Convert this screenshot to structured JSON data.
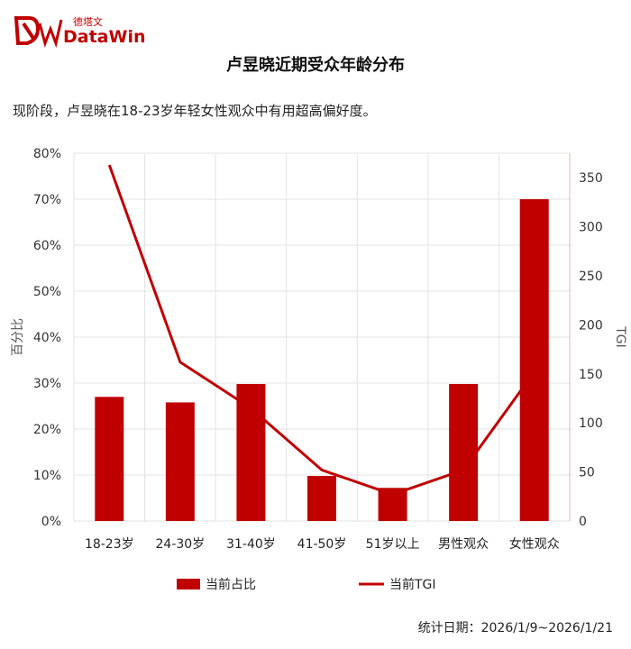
{
  "brand": {
    "cn": "德塔文",
    "en": "DataWin",
    "accent": "#c00000"
  },
  "title": "卢昱晓近期受众年龄分布",
  "subtitle": "现阶段，卢昱晓在18-23岁年轻女性观众中有用超高偏好度。",
  "footer": "统计日期：2026/1/9~2026/1/21",
  "chart_data": {
    "type": "bar",
    "categories": [
      "18-23岁",
      "24-30岁",
      "31-40岁",
      "41-50岁",
      "51岁以上",
      "男性观众",
      "女性观众"
    ],
    "series": [
      {
        "name": "当前占比",
        "type": "bar",
        "axis": "left",
        "color": "#c00000",
        "values": [
          27.0,
          25.8,
          29.8,
          9.8,
          7.2,
          29.8,
          70.0
        ]
      },
      {
        "name": "当前TGI",
        "type": "line",
        "axis": "right",
        "color": "#c00000",
        "values": [
          363,
          162,
          115,
          52,
          27,
          52,
          152
        ]
      }
    ],
    "y_left": {
      "label": "百分比",
      "lim": [
        0,
        80
      ],
      "ticks": [
        "0%",
        "10%",
        "20%",
        "30%",
        "40%",
        "50%",
        "60%",
        "70%",
        "80%"
      ]
    },
    "y_right": {
      "label": "TGI",
      "lim": [
        0,
        375
      ],
      "ticks": [
        "0",
        "50",
        "100",
        "150",
        "200",
        "250",
        "300",
        "350"
      ]
    },
    "grid": true,
    "legend": "bottom"
  }
}
